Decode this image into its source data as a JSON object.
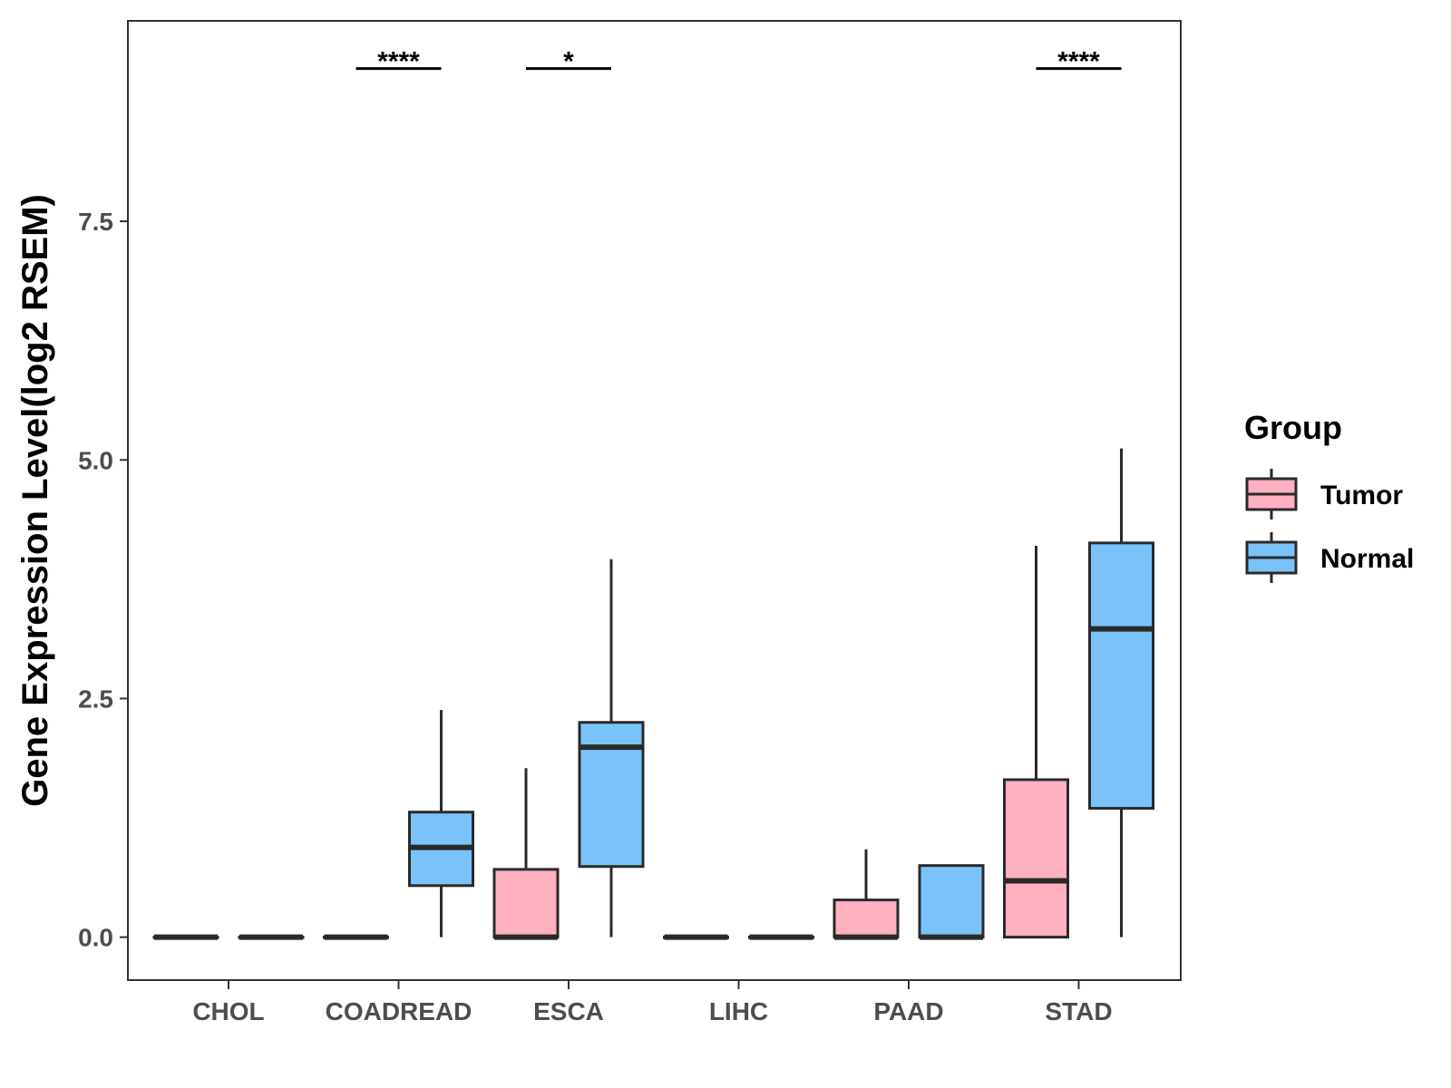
{
  "chart_data": {
    "type": "boxplot",
    "ylabel": "Gene Expression Level(log2 RSEM)",
    "xlabel": "",
    "ylim": [
      -0.45,
      9.6
    ],
    "yticks": [
      0.0,
      2.5,
      5.0,
      7.5
    ],
    "ytick_labels": [
      "0.0",
      "2.5",
      "5.0",
      "7.5"
    ],
    "categories": [
      "CHOL",
      "COADREAD",
      "ESCA",
      "LIHC",
      "PAAD",
      "STAD"
    ],
    "legend": {
      "title": "Group",
      "position": "right",
      "items": [
        {
          "label": "Tumor",
          "color": "#FFB0C1"
        },
        {
          "label": "Normal",
          "color": "#7AC3FA"
        }
      ]
    },
    "series": [
      {
        "name": "Tumor",
        "color": "#FFB0C1",
        "boxes": [
          {
            "category": "CHOL",
            "min": 0,
            "q1": 0,
            "median": 0,
            "q3": 0,
            "max": 0
          },
          {
            "category": "COADREAD",
            "min": 0,
            "q1": 0,
            "median": 0,
            "q3": 0,
            "max": 0
          },
          {
            "category": "ESCA",
            "min": 0,
            "q1": 0,
            "median": 0,
            "q3": 0.71,
            "max": 1.77
          },
          {
            "category": "LIHC",
            "min": 0,
            "q1": 0,
            "median": 0,
            "q3": 0,
            "max": 0
          },
          {
            "category": "PAAD",
            "min": 0,
            "q1": 0,
            "median": 0,
            "q3": 0.39,
            "max": 0.92
          },
          {
            "category": "STAD",
            "min": 0,
            "q1": 0,
            "median": 0.59,
            "q3": 1.65,
            "max": 4.1
          }
        ]
      },
      {
        "name": "Normal",
        "color": "#7AC3FA",
        "boxes": [
          {
            "category": "CHOL",
            "min": 0,
            "q1": 0,
            "median": 0,
            "q3": 0,
            "max": 0
          },
          {
            "category": "COADREAD",
            "min": 0,
            "q1": 0.54,
            "median": 0.94,
            "q3": 1.31,
            "max": 2.38
          },
          {
            "category": "ESCA",
            "min": 0,
            "q1": 0.74,
            "median": 1.99,
            "q3": 2.25,
            "max": 3.96
          },
          {
            "category": "LIHC",
            "min": 0,
            "q1": 0,
            "median": 0,
            "q3": 0,
            "max": 0
          },
          {
            "category": "PAAD",
            "min": 0,
            "q1": 0,
            "median": 0,
            "q3": 0.75,
            "max": 0.75
          },
          {
            "category": "STAD",
            "min": 0,
            "q1": 1.35,
            "median": 3.23,
            "q3": 4.13,
            "max": 5.12
          }
        ]
      }
    ],
    "significance": [
      {
        "category": "COADREAD",
        "label": "****"
      },
      {
        "category": "ESCA",
        "label": "*"
      },
      {
        "category": "STAD",
        "label": "****"
      }
    ],
    "significance_y": 9.1
  }
}
